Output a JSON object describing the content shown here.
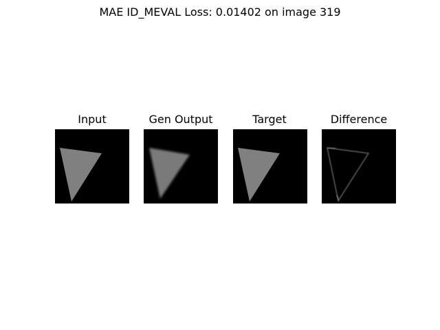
{
  "figure": {
    "title": "MAE ID_MEVAL Loss: 0.01402 on image 319"
  },
  "panels": [
    {
      "title": "Input",
      "image": "sharp-gray-triangle"
    },
    {
      "title": "Gen Output",
      "image": "blurred-gray-triangle"
    },
    {
      "title": "Target",
      "image": "sharp-gray-triangle"
    },
    {
      "title": "Difference",
      "image": "triangle-edge-outline"
    }
  ],
  "colors": {
    "background": "#000000",
    "shape": "#808080",
    "difference_edge": "#5a5a5a"
  }
}
